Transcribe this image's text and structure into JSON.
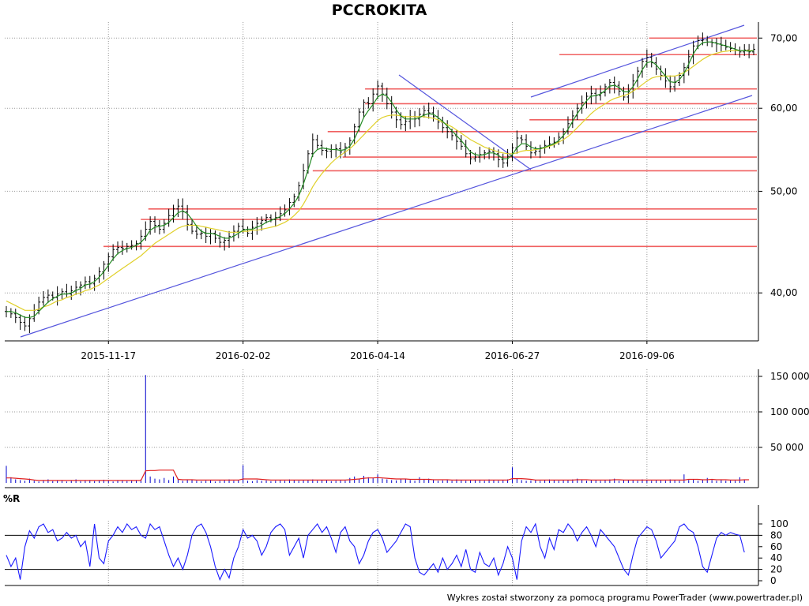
{
  "footer": "Wykres został stworzony za pomocą programu PowerTrader (www.powertrader.pl)",
  "colors": {
    "price_bar": "#000000",
    "ma_fast": "#228b22",
    "ma_slow": "#e0d02a",
    "support_resistance": "#f06060",
    "trendline": "#5555dd",
    "volume": "#0000cc",
    "volume_avg": "#e02020",
    "williams_r": "#1a1aff",
    "grid": "#999999"
  },
  "chart_data": [
    {
      "type": "line",
      "title": "PCCROKITA",
      "x_ticks": [
        "2015-11-17",
        "2016-02-02",
        "2016-04-14",
        "2016-06-27",
        "2016-09-06"
      ],
      "y_scale": "log",
      "y_ticks": [
        "40,00",
        "50,00",
        "60,00",
        "70,00"
      ],
      "y_tick_values": [
        40,
        50,
        60,
        70
      ],
      "ylim": [
        36.0,
        72.5
      ],
      "grid": true,
      "series": [
        {
          "role": "close",
          "values": [
            38.4,
            38.2,
            37.9,
            37.5,
            37.2,
            37.8,
            38.5,
            39.2,
            39.6,
            39.8,
            39.6,
            39.9,
            40.1,
            39.9,
            40.2,
            40.5,
            40.7,
            41.0,
            40.8,
            41.3,
            41.9,
            42.6,
            43.3,
            44.0,
            44.2,
            44.1,
            44.3,
            44.4,
            44.6,
            45.3,
            46.0,
            46.8,
            46.4,
            46.0,
            46.6,
            47.4,
            48.1,
            48.4,
            47.8,
            46.5,
            45.8,
            45.5,
            45.6,
            45.3,
            45.6,
            45.1,
            44.7,
            44.9,
            45.3,
            45.8,
            46.3,
            46.0,
            45.6,
            46.2,
            46.6,
            46.9,
            47.2,
            47.0,
            47.2,
            47.6,
            48.0,
            48.8,
            49.4,
            50.6,
            52.3,
            54.3,
            56.0,
            55.3,
            54.7,
            54.6,
            54.8,
            54.9,
            54.5,
            55.1,
            55.9,
            57.6,
            59.5,
            60.8,
            60.6,
            61.9,
            63.0,
            61.9,
            60.6,
            59.5,
            58.5,
            57.9,
            58.3,
            58.9,
            58.6,
            59.2,
            59.7,
            59.4,
            58.9,
            58.2,
            57.5,
            57.0,
            56.5,
            55.8,
            55.2,
            54.3,
            53.7,
            53.9,
            54.2,
            54.4,
            54.6,
            54.3,
            53.6,
            53.2,
            54.0,
            55.0,
            56.2,
            56.0,
            55.2,
            54.4,
            54.6,
            55.0,
            55.3,
            55.5,
            55.7,
            56.3,
            57.0,
            58.0,
            59.0,
            60.0,
            60.8,
            61.6,
            62.0,
            61.7,
            62.1,
            62.9,
            63.5,
            63.1,
            62.3,
            61.5,
            62.2,
            63.7,
            65.1,
            66.5,
            67.1,
            66.3,
            65.4,
            64.5,
            63.7,
            62.9,
            63.5,
            64.5,
            65.6,
            67.2,
            68.8,
            69.6,
            69.7,
            69.4,
            69.3,
            69.1,
            68.9,
            68.6,
            68.4,
            68.1,
            67.9,
            68.2,
            67.9,
            68.3
          ]
        },
        {
          "role": "moving_average_fast",
          "values": [
            38.4,
            38.4,
            38.3,
            38.1,
            37.9,
            37.9,
            38.0,
            38.4,
            38.8,
            39.2,
            39.5,
            39.7,
            39.9,
            39.9,
            40.0,
            40.2,
            40.4,
            40.7,
            40.8,
            41.0,
            41.4,
            41.9,
            42.5,
            43.1,
            43.6,
            43.9,
            44.1,
            44.2,
            44.4,
            44.7,
            45.2,
            45.9,
            46.2,
            46.3,
            46.4,
            46.7,
            47.2,
            47.7,
            47.9,
            47.6,
            47.0,
            46.3,
            45.8,
            45.6,
            45.6,
            45.5,
            45.3,
            45.1,
            45.1,
            45.3,
            45.6,
            45.9,
            46.0,
            46.0,
            46.2,
            46.4,
            46.7,
            46.9,
            47.1,
            47.3,
            47.6,
            48.1,
            48.7,
            49.5,
            50.8,
            52.4,
            54.2,
            54.8,
            55.0,
            54.9,
            54.8,
            54.8,
            54.7,
            54.8,
            55.2,
            56.1,
            57.4,
            58.8,
            59.7,
            60.5,
            61.5,
            61.9,
            61.6,
            60.8,
            59.8,
            59.0,
            58.6,
            58.6,
            58.6,
            58.8,
            59.1,
            59.3,
            59.2,
            58.8,
            58.3,
            57.7,
            57.1,
            56.5,
            55.9,
            55.2,
            54.5,
            54.2,
            54.1,
            54.2,
            54.4,
            54.4,
            54.1,
            53.7,
            53.7,
            54.2,
            55.0,
            55.5,
            55.5,
            55.1,
            54.9,
            54.9,
            55.1,
            55.3,
            55.5,
            55.9,
            56.5,
            57.3,
            58.3,
            59.3,
            60.2,
            61.0,
            61.6,
            61.7,
            61.9,
            62.4,
            63.0,
            63.1,
            62.8,
            62.2,
            62.2,
            62.9,
            64.0,
            65.3,
            66.3,
            66.5,
            66.0,
            65.2,
            64.4,
            63.6,
            63.5,
            63.9,
            64.8,
            66.1,
            67.6,
            68.7,
            69.3,
            69.4,
            69.4,
            69.2,
            69.0,
            68.8,
            68.6,
            68.3,
            68.1,
            68.1,
            68.0,
            68.1
          ]
        },
        {
          "role": "moving_average_slow",
          "values": [
            39.3,
            39.1,
            38.9,
            38.7,
            38.5,
            38.5,
            38.5,
            38.6,
            38.8,
            38.9,
            39.1,
            39.3,
            39.4,
            39.6,
            39.7,
            39.9,
            40.0,
            40.2,
            40.3,
            40.5,
            40.7,
            41.0,
            41.3,
            41.6,
            41.9,
            42.2,
            42.5,
            42.8,
            43.1,
            43.4,
            43.8,
            44.2,
            44.6,
            44.9,
            45.2,
            45.5,
            45.8,
            46.1,
            46.3,
            46.4,
            46.4,
            46.4,
            46.3,
            46.2,
            46.1,
            46.0,
            45.9,
            45.8,
            45.7,
            45.7,
            45.7,
            45.8,
            45.8,
            45.9,
            45.9,
            46.0,
            46.1,
            46.2,
            46.3,
            46.5,
            46.7,
            47.0,
            47.4,
            47.9,
            48.6,
            49.5,
            50.5,
            51.3,
            52.0,
            52.6,
            53.2,
            53.7,
            54.1,
            54.5,
            54.9,
            55.4,
            56.0,
            56.6,
            57.2,
            57.8,
            58.4,
            58.8,
            59.0,
            59.1,
            59.1,
            59.0,
            58.9,
            58.9,
            58.9,
            58.9,
            58.9,
            58.8,
            58.7,
            58.5,
            58.2,
            57.9,
            57.6,
            57.2,
            56.8,
            56.4,
            56.0,
            55.7,
            55.4,
            55.1,
            54.9,
            54.7,
            54.5,
            54.4,
            54.3,
            54.3,
            54.4,
            54.6,
            54.7,
            54.7,
            54.8,
            54.9,
            55.0,
            55.2,
            55.4,
            55.7,
            56.0,
            56.4,
            56.9,
            57.5,
            58.1,
            58.7,
            59.3,
            59.8,
            60.2,
            60.6,
            61.0,
            61.3,
            61.5,
            61.7,
            61.9,
            62.3,
            62.7,
            63.2,
            63.7,
            64.1,
            64.3,
            64.4,
            64.4,
            64.4,
            64.4,
            64.6,
            64.9,
            65.3,
            65.8,
            66.3,
            66.8,
            67.2,
            67.5,
            67.7,
            67.9,
            68.0,
            68.1,
            68.1,
            68.1,
            68.1,
            68.1,
            68.1
          ]
        }
      ],
      "horizontal_levels": [
        70.0,
        67.5,
        62.6,
        60.6,
        58.5,
        57.0,
        53.9,
        52.3,
        48.1,
        47.0,
        44.3
      ]
    },
    {
      "type": "bar",
      "y_ticks": [
        "50 000",
        "100 000",
        "150 000"
      ],
      "y_tick_values": [
        50000,
        100000,
        150000
      ],
      "ylim": [
        0,
        160000
      ],
      "grid": true,
      "series": [
        {
          "role": "volume",
          "values": [
            24000,
            8000,
            5000,
            4000,
            3000,
            6000,
            3000,
            2000,
            4000,
            5000,
            2500,
            3000,
            4000,
            2000,
            3000,
            5000,
            2500,
            3000,
            4000,
            2500,
            3000,
            4500,
            3000,
            2000,
            3500,
            3000,
            2500,
            3000,
            4000,
            5000,
            152000,
            9000,
            6000,
            5000,
            7000,
            4000,
            9000,
            6000,
            3000,
            5000,
            4000,
            3000,
            2500,
            3000,
            4000,
            2000,
            3000,
            3500,
            5000,
            3000,
            4000,
            25000,
            3000,
            2500,
            4000,
            3000,
            3500,
            2500,
            3000,
            4000,
            3000,
            5000,
            4000,
            3000,
            3500,
            4000,
            5000,
            3000,
            4000,
            3500,
            2500,
            3000,
            4000,
            3000,
            7000,
            9000,
            6000,
            10000,
            8000,
            7000,
            12000,
            6000,
            5000,
            4000,
            3500,
            6000,
            5000,
            4000,
            3000,
            8000,
            5000,
            6000,
            4000,
            3000,
            3500,
            4000,
            3000,
            5000,
            4000,
            3000,
            3500,
            4000,
            4500,
            3000,
            5000,
            4000,
            3000,
            3500,
            5000,
            22000,
            6000,
            4000,
            3000,
            3500,
            4000,
            3000,
            4000,
            5000,
            4000,
            3000,
            3500,
            4000,
            5000,
            6000,
            4500,
            3000,
            4000,
            3500,
            3000,
            4000,
            5000,
            6000,
            3000,
            4000,
            3500,
            4000,
            3000,
            5000,
            4000,
            3000,
            3500,
            4000,
            3000,
            5000,
            4000,
            3000,
            12000,
            4000,
            5000,
            3000,
            4000,
            7000,
            4000,
            3000,
            5000,
            3000,
            4000,
            3000,
            8000,
            4000
          ]
        },
        {
          "role": "volume_average",
          "values": [
            7000,
            7000,
            6500,
            6000,
            5500,
            5000,
            4000,
            3500,
            3500,
            3500,
            3500,
            3500,
            3500,
            3500,
            3500,
            3500,
            3500,
            3500,
            3500,
            3500,
            3500,
            3500,
            3500,
            3500,
            3500,
            3500,
            3500,
            3500,
            3500,
            3500,
            17000,
            17500,
            17500,
            18000,
            18000,
            18000,
            18000,
            5000,
            4500,
            4500,
            4500,
            4000,
            4000,
            4000,
            4000,
            4000,
            4000,
            4000,
            4000,
            4000,
            4000,
            5500,
            5500,
            5500,
            5500,
            5000,
            4500,
            4000,
            4000,
            4000,
            4000,
            4000,
            4000,
            4000,
            4000,
            4000,
            4000,
            4000,
            4000,
            4000,
            4000,
            4000,
            4000,
            4000,
            4500,
            5000,
            5500,
            6500,
            7000,
            7000,
            7500,
            7000,
            6500,
            6000,
            5500,
            5500,
            5500,
            5000,
            5000,
            5000,
            5000,
            5000,
            4500,
            4500,
            4500,
            4500,
            4000,
            4000,
            4000,
            4000,
            4000,
            4000,
            4000,
            4000,
            4000,
            4000,
            4000,
            4000,
            4000,
            6000,
            6000,
            6000,
            5500,
            5000,
            4000,
            4000,
            4000,
            4000,
            4000,
            4000,
            4000,
            4000,
            4000,
            4500,
            4500,
            4500,
            4000,
            4000,
            4000,
            4000,
            4000,
            4500,
            4500,
            4000,
            4000,
            4000,
            4000,
            4000,
            4000,
            4000,
            4000,
            4000,
            4000,
            4000,
            4000,
            4000,
            4000,
            5000,
            5000,
            5000,
            4500,
            4500,
            5000,
            4500,
            4500,
            4500,
            4000,
            4000,
            4000,
            4500,
            4500
          ]
        }
      ]
    },
    {
      "type": "line",
      "ylabel": "%R",
      "y_ticks": [
        "0",
        "20",
        "40",
        "60",
        "80",
        "100"
      ],
      "y_tick_values": [
        0,
        20,
        40,
        60,
        80,
        100
      ],
      "ylim": [
        0,
        100
      ],
      "reference_lines": [
        80,
        20
      ],
      "series": [
        {
          "role": "williams_r",
          "values": [
            45,
            25,
            40,
            2,
            60,
            88,
            75,
            95,
            100,
            85,
            90,
            70,
            75,
            85,
            75,
            80,
            60,
            70,
            25,
            100,
            40,
            30,
            70,
            80,
            95,
            85,
            100,
            90,
            95,
            80,
            75,
            100,
            90,
            95,
            70,
            45,
            25,
            40,
            20,
            45,
            80,
            95,
            100,
            85,
            60,
            25,
            2,
            20,
            5,
            40,
            60,
            90,
            75,
            80,
            70,
            45,
            60,
            85,
            95,
            100,
            90,
            45,
            60,
            75,
            40,
            80,
            90,
            100,
            85,
            95,
            75,
            50,
            85,
            95,
            70,
            60,
            30,
            45,
            70,
            85,
            90,
            75,
            50,
            60,
            70,
            85,
            100,
            95,
            40,
            15,
            10,
            20,
            30,
            15,
            40,
            20,
            30,
            45,
            25,
            55,
            20,
            15,
            50,
            30,
            25,
            40,
            10,
            30,
            60,
            40,
            2,
            70,
            95,
            85,
            100,
            60,
            40,
            75,
            55,
            90,
            85,
            100,
            90,
            70,
            85,
            95,
            80,
            60,
            90,
            80,
            70,
            60,
            40,
            20,
            10,
            45,
            75,
            85,
            95,
            90,
            70,
            40,
            50,
            60,
            70,
            95,
            100,
            90,
            85,
            60,
            25,
            15,
            45,
            75,
            85,
            80,
            85,
            82,
            80,
            50
          ]
        }
      ]
    }
  ]
}
